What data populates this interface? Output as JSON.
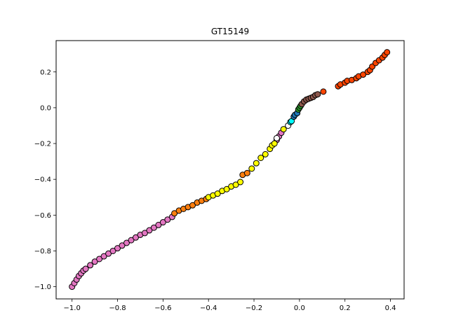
{
  "chart_data": {
    "type": "scatter",
    "title": "GT15149",
    "xlabel": "",
    "ylabel": "",
    "xlim": [
      -1.07,
      0.46
    ],
    "ylim": [
      -1.068,
      0.375
    ],
    "xticks": [
      -1.0,
      -0.8,
      -0.6,
      -0.4,
      -0.2,
      0.0,
      0.2,
      0.4
    ],
    "xtick_labels": [
      "−1.0",
      "−0.8",
      "−0.6",
      "−0.4",
      "−0.2",
      "0.0",
      "0.2",
      "0.4"
    ],
    "yticks": [
      -1.0,
      -0.8,
      -0.6,
      -0.4,
      -0.2,
      0.0,
      0.2
    ],
    "ytick_labels": [
      "−1.0",
      "−0.8",
      "−0.6",
      "−0.4",
      "−0.2",
      "0.0",
      "0.2"
    ],
    "grid": false,
    "marker_edge_color": "#000000",
    "series": [
      {
        "color": "#e377c2",
        "points": [
          [
            -1.0,
            -1.0
          ],
          [
            -0.99,
            -0.98
          ],
          [
            -0.98,
            -0.96
          ],
          [
            -0.97,
            -0.94
          ],
          [
            -0.96,
            -0.925
          ],
          [
            -0.95,
            -0.91
          ],
          [
            -0.94,
            -0.9
          ],
          [
            -0.92,
            -0.88
          ],
          [
            -0.9,
            -0.86
          ],
          [
            -0.88,
            -0.845
          ],
          [
            -0.86,
            -0.83
          ],
          [
            -0.84,
            -0.815
          ],
          [
            -0.82,
            -0.8
          ],
          [
            -0.8,
            -0.785
          ],
          [
            -0.78,
            -0.77
          ],
          [
            -0.76,
            -0.755
          ],
          [
            -0.74,
            -0.74
          ],
          [
            -0.72,
            -0.725
          ],
          [
            -0.7,
            -0.71
          ],
          [
            -0.68,
            -0.7
          ],
          [
            -0.66,
            -0.685
          ],
          [
            -0.64,
            -0.67
          ],
          [
            -0.62,
            -0.655
          ],
          [
            -0.6,
            -0.64
          ],
          [
            -0.58,
            -0.625
          ],
          [
            -0.56,
            -0.61
          ],
          [
            -0.1,
            -0.18
          ],
          [
            -0.09,
            -0.16
          ],
          [
            -0.08,
            -0.14
          ]
        ]
      },
      {
        "color": "#ff7f0e",
        "points": [
          [
            -0.55,
            -0.59
          ],
          [
            -0.53,
            -0.575
          ],
          [
            -0.51,
            -0.565
          ],
          [
            -0.49,
            -0.555
          ],
          [
            -0.47,
            -0.545
          ],
          [
            -0.45,
            -0.53
          ],
          [
            -0.43,
            -0.52
          ],
          [
            -0.41,
            -0.51
          ],
          [
            -0.25,
            -0.375
          ],
          [
            -0.23,
            -0.365
          ]
        ]
      },
      {
        "color": "#ffff00",
        "points": [
          [
            -0.4,
            -0.5
          ],
          [
            -0.38,
            -0.49
          ],
          [
            -0.36,
            -0.48
          ],
          [
            -0.34,
            -0.465
          ],
          [
            -0.32,
            -0.455
          ],
          [
            -0.3,
            -0.44
          ],
          [
            -0.28,
            -0.43
          ],
          [
            -0.26,
            -0.415
          ],
          [
            -0.21,
            -0.34
          ],
          [
            -0.19,
            -0.31
          ],
          [
            -0.17,
            -0.28
          ],
          [
            -0.15,
            -0.26
          ],
          [
            -0.13,
            -0.23
          ],
          [
            -0.12,
            -0.21
          ],
          [
            -0.11,
            -0.2
          ],
          [
            -0.07,
            -0.12
          ]
        ]
      },
      {
        "color": "#ffffff",
        "points": [
          [
            -0.1,
            -0.17
          ],
          [
            -0.05,
            -0.1
          ]
        ]
      },
      {
        "color": "#00ffff",
        "points": [
          [
            -0.04,
            -0.08
          ],
          [
            -0.035,
            -0.075
          ]
        ]
      },
      {
        "color": "#1f77b4",
        "points": [
          [
            -0.025,
            -0.05
          ],
          [
            -0.02,
            -0.04
          ],
          [
            -0.01,
            -0.03
          ]
        ]
      },
      {
        "color": "#2ca02c",
        "points": [
          [
            -0.005,
            -0.01
          ],
          [
            0.0,
            0.0
          ],
          [
            0.005,
            0.01
          ]
        ]
      },
      {
        "color": "#8c564b",
        "points": [
          [
            0.01,
            0.02
          ],
          [
            0.02,
            0.035
          ],
          [
            0.03,
            0.045
          ],
          [
            0.04,
            0.05
          ],
          [
            0.05,
            0.055
          ],
          [
            0.06,
            0.06
          ],
          [
            0.07,
            0.07
          ],
          [
            0.08,
            0.075
          ]
        ]
      },
      {
        "color": "#ff4500",
        "points": [
          [
            0.105,
            0.09
          ],
          [
            0.17,
            0.12
          ],
          [
            0.18,
            0.13
          ],
          [
            0.2,
            0.14
          ],
          [
            0.21,
            0.15
          ],
          [
            0.23,
            0.155
          ],
          [
            0.25,
            0.165
          ],
          [
            0.26,
            0.175
          ],
          [
            0.28,
            0.185
          ],
          [
            0.3,
            0.2
          ],
          [
            0.31,
            0.21
          ],
          [
            0.32,
            0.23
          ],
          [
            0.335,
            0.25
          ],
          [
            0.35,
            0.265
          ],
          [
            0.365,
            0.28
          ],
          [
            0.375,
            0.295
          ],
          [
            0.385,
            0.31
          ]
        ]
      }
    ]
  }
}
